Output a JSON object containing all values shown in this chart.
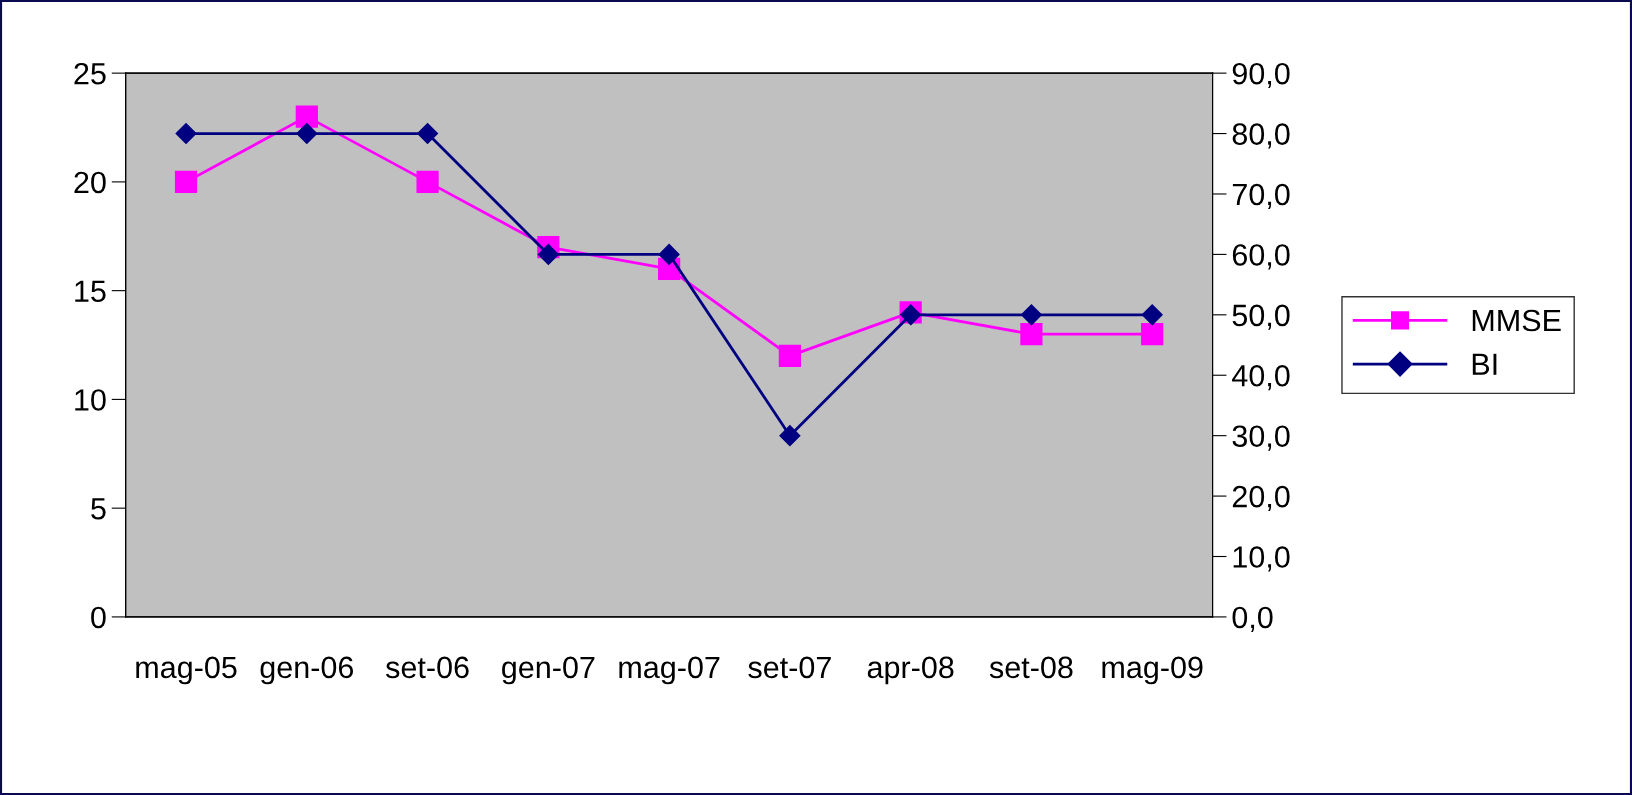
{
  "chart_data": {
    "type": "line",
    "categories": [
      "mag-05",
      "gen-06",
      "set-06",
      "gen-07",
      "mag-07",
      "set-07",
      "apr-08",
      "set-08",
      "mag-09"
    ],
    "series": [
      {
        "name": "MMSE",
        "color": "#ff00ff",
        "marker": "square",
        "values": [
          20,
          23,
          20,
          17,
          16,
          12,
          14,
          13,
          13
        ]
      },
      {
        "name": "BI",
        "color": "#000080",
        "marker": "diamond",
        "axis": "y2",
        "values": [
          80,
          80,
          80,
          60,
          60,
          30,
          50,
          50,
          50
        ]
      }
    ],
    "ylim": [
      0,
      25
    ],
    "yticks": [
      0,
      5,
      10,
      15,
      20,
      25
    ],
    "y2lim": [
      0,
      90
    ],
    "y2ticks": [
      {
        "value": 0,
        "label": "0,0"
      },
      {
        "value": 10,
        "label": "10,0"
      },
      {
        "value": 20,
        "label": "20,0"
      },
      {
        "value": 30,
        "label": "30,0"
      },
      {
        "value": 40,
        "label": "40,0"
      },
      {
        "value": 50,
        "label": "50,0"
      },
      {
        "value": 60,
        "label": "60,0"
      },
      {
        "value": 70,
        "label": "70,0"
      },
      {
        "value": 80,
        "label": "80,0"
      },
      {
        "value": 90,
        "label": "90,0"
      }
    ],
    "grid": false,
    "legend": "right",
    "line_style": "solid"
  }
}
